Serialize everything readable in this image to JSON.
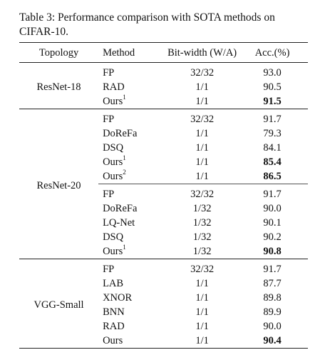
{
  "caption": "Table 3: Performance comparison with SOTA methods on CIFAR-10.",
  "headers": {
    "topology": "Topology",
    "method": "Method",
    "bitwidth": "Bit-width (W/A)",
    "acc": "Acc.(%)"
  },
  "groups": [
    {
      "topology": "ResNet-18",
      "blocks": [
        [
          {
            "method": "FP",
            "sup": "",
            "bits": "32/32",
            "acc": "93.0",
            "bold": false
          },
          {
            "method": "RAD",
            "sup": "",
            "bits": "1/1",
            "acc": "90.5",
            "bold": false
          },
          {
            "method": "Ours",
            "sup": "1",
            "bits": "1/1",
            "acc": "91.5",
            "bold": true
          }
        ]
      ]
    },
    {
      "topology": "ResNet-20",
      "blocks": [
        [
          {
            "method": "FP",
            "sup": "",
            "bits": "32/32",
            "acc": "91.7",
            "bold": false
          },
          {
            "method": "DoReFa",
            "sup": "",
            "bits": "1/1",
            "acc": "79.3",
            "bold": false
          },
          {
            "method": "DSQ",
            "sup": "",
            "bits": "1/1",
            "acc": "84.1",
            "bold": false
          },
          {
            "method": "Ours",
            "sup": "1",
            "bits": "1/1",
            "acc": "85.4",
            "bold": true
          },
          {
            "method": "Ours",
            "sup": "2",
            "bits": "1/1",
            "acc": "86.5",
            "bold": true
          }
        ],
        [
          {
            "method": "FP",
            "sup": "",
            "bits": "32/32",
            "acc": "91.7",
            "bold": false
          },
          {
            "method": "DoReFa",
            "sup": "",
            "bits": "1/32",
            "acc": "90.0",
            "bold": false
          },
          {
            "method": "LQ-Net",
            "sup": "",
            "bits": "1/32",
            "acc": "90.1",
            "bold": false
          },
          {
            "method": "DSQ",
            "sup": "",
            "bits": "1/32",
            "acc": "90.2",
            "bold": false
          },
          {
            "method": "Ours",
            "sup": "1",
            "bits": "1/32",
            "acc": "90.8",
            "bold": true
          }
        ]
      ]
    },
    {
      "topology": "VGG-Small",
      "blocks": [
        [
          {
            "method": "FP",
            "sup": "",
            "bits": "32/32",
            "acc": "91.7",
            "bold": false
          },
          {
            "method": "LAB",
            "sup": "",
            "bits": "1/1",
            "acc": "87.7",
            "bold": false
          },
          {
            "method": "XNOR",
            "sup": "",
            "bits": "1/1",
            "acc": "89.8",
            "bold": false
          },
          {
            "method": "BNN",
            "sup": "",
            "bits": "1/1",
            "acc": "89.9",
            "bold": false
          },
          {
            "method": "RAD",
            "sup": "",
            "bits": "1/1",
            "acc": "90.0",
            "bold": false
          },
          {
            "method": "Ours",
            "sup": "",
            "bits": "1/1",
            "acc": "90.4",
            "bold": true
          }
        ]
      ]
    }
  ]
}
